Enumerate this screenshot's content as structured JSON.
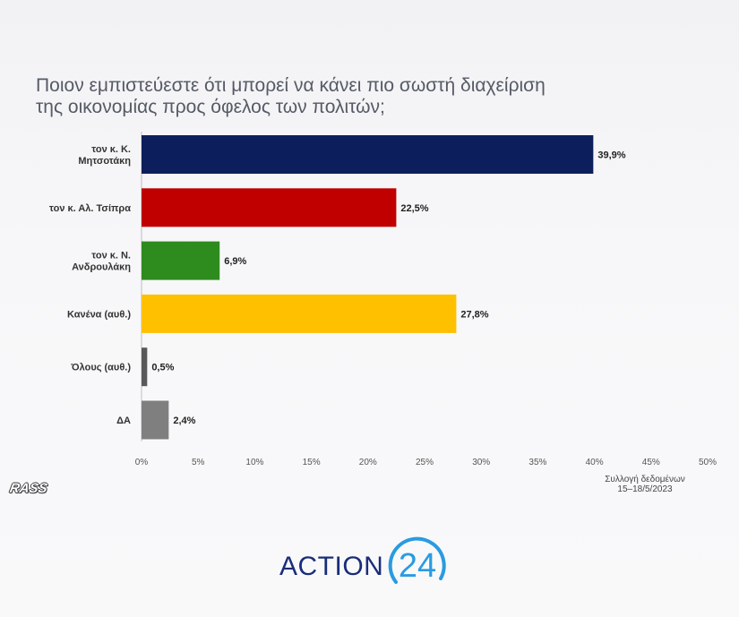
{
  "title_lines": [
    "Ποιον εμπιστεύεστε ότι μπορεί να κάνει πιο σωστή διαχείριση",
    "της οικονομίας προς όφελος των πολιτών;"
  ],
  "chart_data": {
    "type": "bar",
    "orientation": "horizontal",
    "categories": [
      [
        "τον κ. Κ.",
        "Μητσοτάκη"
      ],
      [
        "τον κ. Αλ. Τσίπρα"
      ],
      [
        "τον κ. Ν.",
        "Ανδρουλάκη"
      ],
      [
        "Κανένα (αυθ.)"
      ],
      [
        "Όλους (αυθ.)"
      ],
      [
        "ΔΑ"
      ]
    ],
    "values": [
      39.9,
      22.5,
      6.9,
      27.8,
      0.5,
      2.4
    ],
    "value_labels": [
      "39,9%",
      "22,5%",
      "6,9%",
      "27,8%",
      "0,5%",
      "2,4%"
    ],
    "colors": [
      "#0c1f5c",
      "#c00000",
      "#2e8b1e",
      "#ffc000",
      "#595959",
      "#7f7f7f"
    ],
    "xlim": [
      0,
      50
    ],
    "xticks": [
      "0%",
      "5%",
      "10%",
      "15%",
      "20%",
      "25%",
      "30%",
      "35%",
      "40%",
      "45%",
      "50%"
    ],
    "grid": false,
    "legend": "none"
  },
  "source_note": [
    "Συλλογή δεδομένων",
    "15–18/5/2023"
  ],
  "rass_logo": "RASS",
  "brand": {
    "text": "ACTION",
    "number": "24",
    "color": "#1a2d7a",
    "accent": "#2a9be0"
  }
}
